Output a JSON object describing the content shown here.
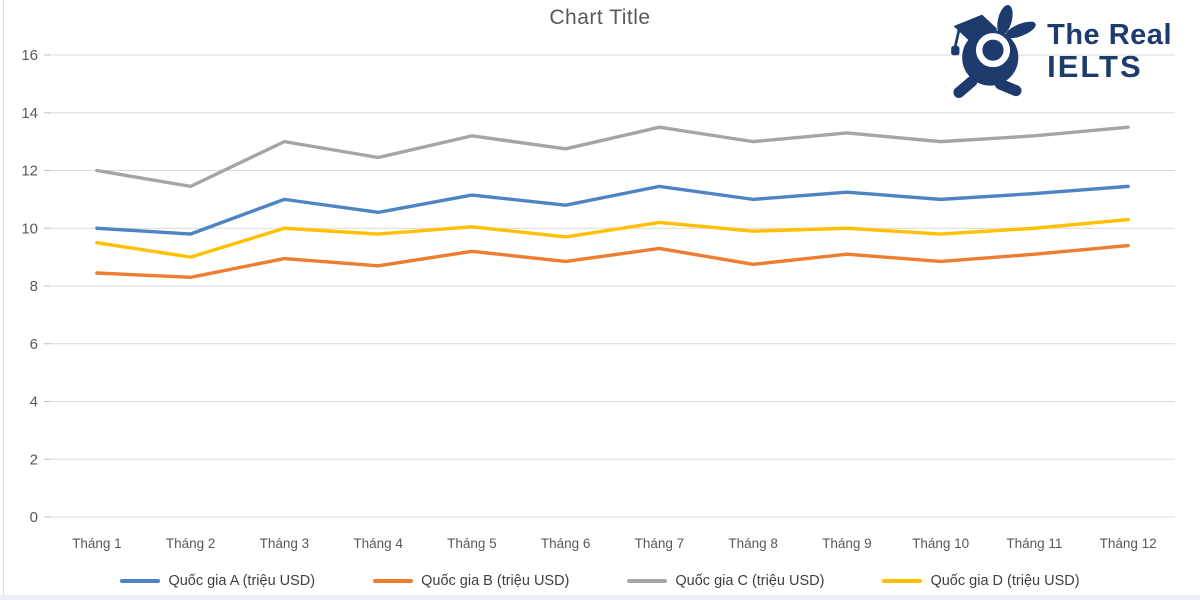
{
  "chart_data": {
    "type": "line",
    "title": "Chart Title",
    "categories": [
      "Tháng 1",
      "Tháng 2",
      "Tháng 3",
      "Tháng 4",
      "Tháng 5",
      "Tháng 6",
      "Tháng 7",
      "Tháng 8",
      "Tháng 9",
      "Tháng 10",
      "Tháng 11",
      "Tháng 12"
    ],
    "series": [
      {
        "name": "Quốc gia A (triệu USD)",
        "color": "#4e84c4",
        "values": [
          10.0,
          9.8,
          11.0,
          10.55,
          11.15,
          10.8,
          11.45,
          11.0,
          11.25,
          11.0,
          11.2,
          11.45
        ]
      },
      {
        "name": "Quốc gia B (triệu USD)",
        "color": "#ed7d31",
        "values": [
          8.45,
          8.3,
          8.95,
          8.7,
          9.2,
          8.85,
          9.3,
          8.75,
          9.1,
          8.85,
          9.1,
          9.4
        ]
      },
      {
        "name": "Quốc gia C (triệu USD)",
        "color": "#a5a5a5",
        "values": [
          12.0,
          11.45,
          13.0,
          12.45,
          13.2,
          12.75,
          13.5,
          13.0,
          13.3,
          13.0,
          13.2,
          13.5
        ]
      },
      {
        "name": "Quốc gia D (triệu USD)",
        "color": "#ffc000",
        "values": [
          9.5,
          9.0,
          10.0,
          9.8,
          10.05,
          9.7,
          10.2,
          9.9,
          10.0,
          9.8,
          10.0,
          10.3
        ]
      }
    ],
    "ylim": [
      0,
      16
    ],
    "yticks": [
      0,
      2,
      4,
      6,
      8,
      10,
      12,
      14,
      16
    ],
    "grid": true,
    "legend_position": "bottom",
    "gridline_color": "#d9d9d9",
    "axis_text_color": "#595959",
    "title_color": "#595959"
  },
  "logo": {
    "line1": "The Real",
    "line2": "IELTS",
    "color": "#1e3b6d"
  }
}
